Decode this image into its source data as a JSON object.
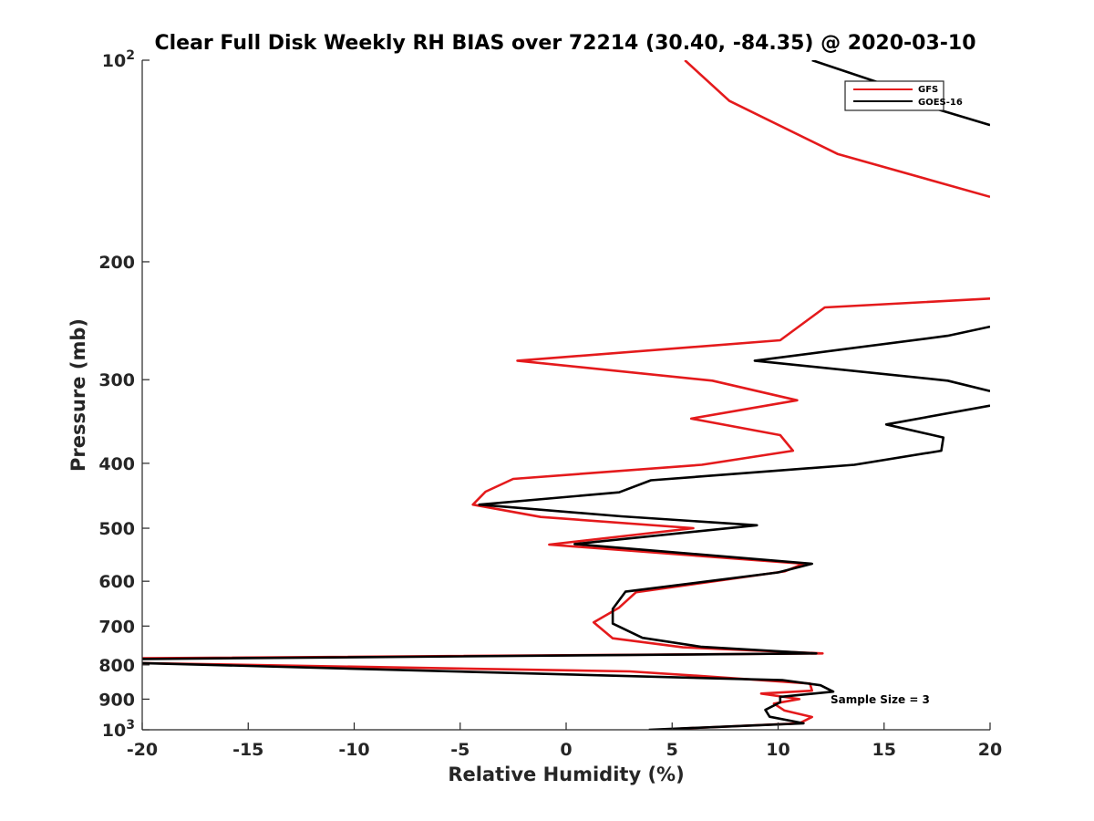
{
  "chart_data": {
    "type": "line",
    "title": "Clear Full Disk Weekly RH BIAS over 72214 (30.40, -84.35) @ 2020-03-10",
    "xlabel": "Relative Humidity (%)",
    "ylabel": "Pressure (mb)",
    "xlim": [
      -20,
      20
    ],
    "ylim": [
      100,
      1000
    ],
    "y_scale": "log",
    "y_reversed": true,
    "xticks": [
      -20,
      -15,
      -10,
      -5,
      0,
      5,
      10,
      15,
      20
    ],
    "xtick_labels": [
      "-20",
      "-15",
      "-10",
      "-5",
      "0",
      "5",
      "10",
      "15",
      "20"
    ],
    "yticks": [
      {
        "value": 100,
        "base": "10",
        "exp": "2"
      },
      {
        "value": 200,
        "label": "200"
      },
      {
        "value": 300,
        "label": "300"
      },
      {
        "value": 400,
        "label": "400"
      },
      {
        "value": 500,
        "label": "500"
      },
      {
        "value": 600,
        "label": "600"
      },
      {
        "value": 700,
        "label": "700"
      },
      {
        "value": 800,
        "label": "800"
      },
      {
        "value": 900,
        "label": "900"
      },
      {
        "value": 1000,
        "base": "10",
        "exp": "3"
      }
    ],
    "legend_position": "top-right",
    "annotation": "Sample Size = 3",
    "series": [
      {
        "name": "GFS",
        "color": "#e41a1c",
        "points": [
          [
            5.6,
            100
          ],
          [
            7.7,
            115
          ],
          [
            12.8,
            138
          ],
          [
            20,
            160
          ],
          null,
          [
            20,
            227
          ],
          [
            12.2,
            234
          ],
          [
            10.1,
            262
          ],
          [
            -2.3,
            281
          ],
          [
            6.9,
            301
          ],
          [
            10.9,
            322
          ],
          [
            5.9,
            343
          ],
          [
            10.1,
            363
          ],
          [
            10.7,
            383
          ],
          [
            6.4,
            402
          ],
          [
            -2.5,
            422
          ],
          [
            -3.8,
            441
          ],
          [
            -4.4,
            461
          ],
          [
            -1.2,
            481
          ],
          [
            6.0,
            500
          ],
          [
            -0.8,
            529
          ],
          [
            11.2,
            565
          ],
          [
            10.3,
            580
          ],
          [
            3.3,
            623
          ],
          [
            2.5,
            657
          ],
          [
            1.3,
            691
          ],
          [
            2.2,
            730
          ],
          [
            5.5,
            753
          ],
          [
            12.1,
            769
          ],
          [
            -20,
            782
          ],
          null,
          [
            -20,
            795
          ],
          [
            3.0,
            818
          ],
          [
            6.6,
            832
          ],
          [
            11.5,
            853
          ],
          [
            11.6,
            874
          ],
          [
            9.2,
            883
          ],
          [
            11.0,
            900
          ],
          [
            9.8,
            914
          ],
          [
            10.3,
            936
          ],
          [
            11.6,
            957
          ],
          [
            11.0,
            978
          ],
          [
            5.4,
            996
          ]
        ]
      },
      {
        "name": "GOES-16",
        "color": "#000000",
        "points": [
          [
            11.6,
            100
          ],
          [
            15.5,
            110
          ],
          [
            16.2,
            115
          ],
          [
            20,
            125
          ],
          null,
          [
            20,
            250
          ],
          [
            18.0,
            258
          ],
          [
            8.9,
            281
          ],
          [
            18.0,
            301
          ],
          [
            20,
            312
          ],
          null,
          [
            20,
            328
          ],
          [
            15.1,
            350
          ],
          [
            17.8,
            366
          ],
          [
            17.7,
            383
          ],
          [
            13.6,
            402
          ],
          [
            4.0,
            424
          ],
          [
            2.5,
            442
          ],
          [
            -4.1,
            461
          ],
          [
            2.6,
            480
          ],
          [
            9.0,
            495
          ],
          [
            0.4,
            528
          ],
          [
            11.6,
            565
          ],
          [
            10.0,
            582
          ],
          [
            2.8,
            622
          ],
          [
            2.2,
            660
          ],
          [
            2.2,
            694
          ],
          [
            3.6,
            729
          ],
          [
            6.4,
            752
          ],
          [
            11.8,
            769
          ],
          [
            -20,
            784
          ],
          null,
          [
            -20,
            795
          ],
          [
            10.2,
            843
          ],
          [
            12.0,
            858
          ],
          [
            12.6,
            877
          ],
          [
            10.1,
            893
          ],
          [
            10.1,
            910
          ],
          [
            9.4,
            934
          ],
          [
            9.6,
            956
          ],
          [
            11.2,
            978
          ],
          [
            3.9,
            1000
          ]
        ]
      }
    ]
  }
}
